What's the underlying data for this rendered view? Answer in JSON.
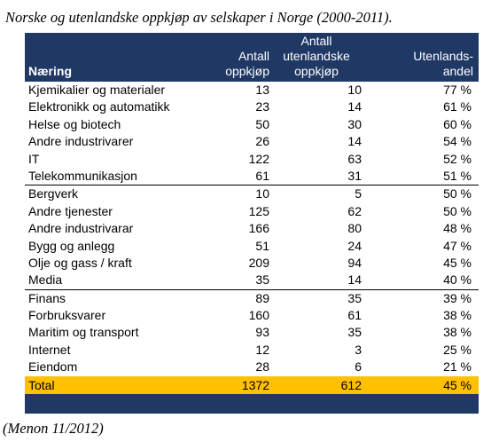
{
  "caption": "Norske og utenlandske oppkjøp av selskaper i Norge (2000-2011).",
  "source": "(Menon 11/2012)",
  "table": {
    "headers": {
      "col1": "Næring",
      "col2_line1": "Antall",
      "col2_line2": "oppkjøp",
      "col3_line1": "Antall",
      "col3_line2": "utenlandske",
      "col3_line3": "oppkjøp",
      "col4_line1": "Utenlands-",
      "col4_line2": "andel"
    },
    "groups": [
      [
        {
          "naering": "Kjemikalier og  materialer",
          "antall": "13",
          "utenlandske": "10",
          "andel": "77 %"
        },
        {
          "naering": "Elektronikk og automatikk",
          "antall": "23",
          "utenlandske": "14",
          "andel": "61 %"
        },
        {
          "naering": "Helse og biotech",
          "antall": "50",
          "utenlandske": "30",
          "andel": "60 %"
        },
        {
          "naering": "Andre industrivarer",
          "antall": "26",
          "utenlandske": "14",
          "andel": "54 %"
        },
        {
          "naering": "IT",
          "antall": "122",
          "utenlandske": "63",
          "andel": "52 %"
        },
        {
          "naering": "Telekommunikasjon",
          "antall": "61",
          "utenlandske": "31",
          "andel": "51 %"
        }
      ],
      [
        {
          "naering": "Bergverk",
          "antall": "10",
          "utenlandske": "5",
          "andel": "50 %"
        },
        {
          "naering": "Andre tjenester",
          "antall": "125",
          "utenlandske": "62",
          "andel": "50 %"
        },
        {
          "naering": "Andre industrivarar",
          "antall": "166",
          "utenlandske": "80",
          "andel": "48 %"
        },
        {
          "naering": "Bygg og anlegg",
          "antall": "51",
          "utenlandske": "24",
          "andel": "47 %"
        },
        {
          "naering": "Olje og gass / kraft",
          "antall": "209",
          "utenlandske": "94",
          "andel": "45 %"
        },
        {
          "naering": "Media",
          "antall": "35",
          "utenlandske": "14",
          "andel": "40 %"
        }
      ],
      [
        {
          "naering": "Finans",
          "antall": "89",
          "utenlandske": "35",
          "andel": "39 %"
        },
        {
          "naering": "Forbruksvarer",
          "antall": "160",
          "utenlandske": "61",
          "andel": "38 %"
        },
        {
          "naering": "Maritim og transport",
          "antall": "93",
          "utenlandske": "35",
          "andel": "38 %"
        },
        {
          "naering": "Internet",
          "antall": "12",
          "utenlandske": "3",
          "andel": "25 %"
        },
        {
          "naering": "Eiendom",
          "antall": "28",
          "utenlandske": "6",
          "andel": "21 %"
        }
      ]
    ],
    "total": {
      "naering": "Total",
      "antall": "1372",
      "utenlandske": "612",
      "andel": "45 %"
    },
    "colors": {
      "header": "#1f3864",
      "total": "#ffc000"
    }
  }
}
